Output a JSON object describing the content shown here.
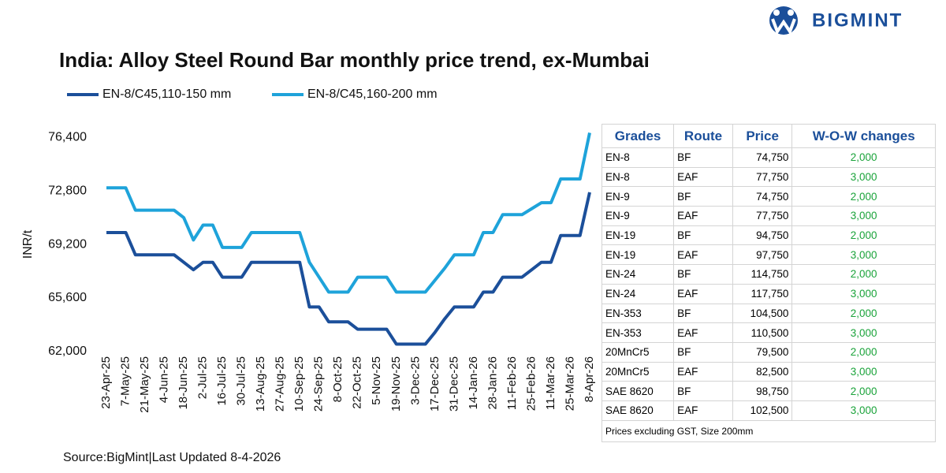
{
  "logo": "BIGMINT",
  "chart_data": {
    "type": "line",
    "title": "India: Alloy Steel Round Bar monthly price trend, ex-Mumbai",
    "y_label": "INR/t",
    "categories": [
      "23-Apr-25",
      null,
      "7-May-25",
      null,
      "21-May-25",
      null,
      "4-Jun-25",
      null,
      "18-Jun-25",
      null,
      "2-Jul-25",
      null,
      "16-Jul-25",
      null,
      "30-Jul-25",
      null,
      "13-Aug-25",
      null,
      "27-Aug-25",
      null,
      "10-Sep-25",
      null,
      "24-Sep-25",
      null,
      "8-Oct-25",
      null,
      "22-Oct-25",
      null,
      "5-Nov-25",
      null,
      "19-Nov-25",
      null,
      "3-Dec-25",
      null,
      "17-Dec-25",
      null,
      "31-Dec-25",
      null,
      "14-Jan-26",
      null,
      "28-Jan-26",
      null,
      "11-Feb-26",
      null,
      "25-Feb-26",
      null,
      "11-Mar-26",
      null,
      "25-Mar-26",
      null,
      "8-Apr-26"
    ],
    "series": [
      {
        "name": "EN-8/C45,110-150 mm",
        "color": "#1b4f9a",
        "values": [
          70000,
          70000,
          70000,
          68500,
          68500,
          68500,
          68500,
          68500,
          68000,
          67500,
          68000,
          68000,
          67000,
          67000,
          67000,
          68000,
          68000,
          68000,
          68000,
          68000,
          68000,
          65000,
          65000,
          64000,
          64000,
          64000,
          63500,
          63500,
          63500,
          63500,
          62500,
          62500,
          62500,
          62500,
          63300,
          64200,
          65000,
          65000,
          65000,
          66000,
          66000,
          67000,
          67000,
          67000,
          67500,
          68000,
          68000,
          69800,
          69800,
          69800,
          72700
        ]
      },
      {
        "name": "EN-8/C45,160-200 mm",
        "color": "#1ea3da",
        "values": [
          73000,
          73000,
          73000,
          71500,
          71500,
          71500,
          71500,
          71500,
          71000,
          69500,
          70500,
          70500,
          69000,
          69000,
          69000,
          70000,
          70000,
          70000,
          70000,
          70000,
          70000,
          68000,
          67000,
          66000,
          66000,
          66000,
          67000,
          67000,
          67000,
          67000,
          66000,
          66000,
          66000,
          66000,
          66800,
          67600,
          68500,
          68500,
          68500,
          70000,
          70000,
          71200,
          71200,
          71200,
          71600,
          72000,
          72000,
          73600,
          73600,
          73600,
          76700
        ]
      }
    ],
    "ylim": [
      62000,
      77200
    ],
    "yticks": [
      {
        "value": 62000,
        "label": "62,000"
      },
      {
        "value": 65600,
        "label": "65,600"
      },
      {
        "value": 69200,
        "label": "69,200"
      },
      {
        "value": 72800,
        "label": "72,800"
      },
      {
        "value": 76400,
        "label": "76,400"
      }
    ],
    "source": "Source:BigMint|Last Updated 8-4-2026"
  },
  "table": {
    "header": [
      "Grades",
      "Route",
      "Price",
      "W-O-W changes"
    ],
    "rows": [
      [
        "EN-8",
        "BF",
        "74,750",
        "2,000"
      ],
      [
        "EN-8",
        "EAF",
        "77,750",
        "3,000"
      ],
      [
        "EN-9",
        "BF",
        "74,750",
        "2,000"
      ],
      [
        "EN-9",
        "EAF",
        "77,750",
        "3,000"
      ],
      [
        "EN-19",
        "BF",
        "94,750",
        "2,000"
      ],
      [
        "EN-19",
        "EAF",
        "97,750",
        "3,000"
      ],
      [
        "EN-24",
        "BF",
        "114,750",
        "2,000"
      ],
      [
        "EN-24",
        "EAF",
        "117,750",
        "3,000"
      ],
      [
        "EN-353",
        "BF",
        "104,500",
        "2,000"
      ],
      [
        "EN-353",
        "EAF",
        "110,500",
        "3,000"
      ],
      [
        "20MnCr5",
        "BF",
        "79,500",
        "2,000"
      ],
      [
        "20MnCr5",
        "EAF",
        "82,500",
        "3,000"
      ],
      [
        "SAE 8620",
        "BF",
        "98,750",
        "2,000"
      ],
      [
        "SAE 8620",
        "EAF",
        "102,500",
        "3,000"
      ]
    ],
    "note": "Prices excluding GST, Size 200mm"
  }
}
